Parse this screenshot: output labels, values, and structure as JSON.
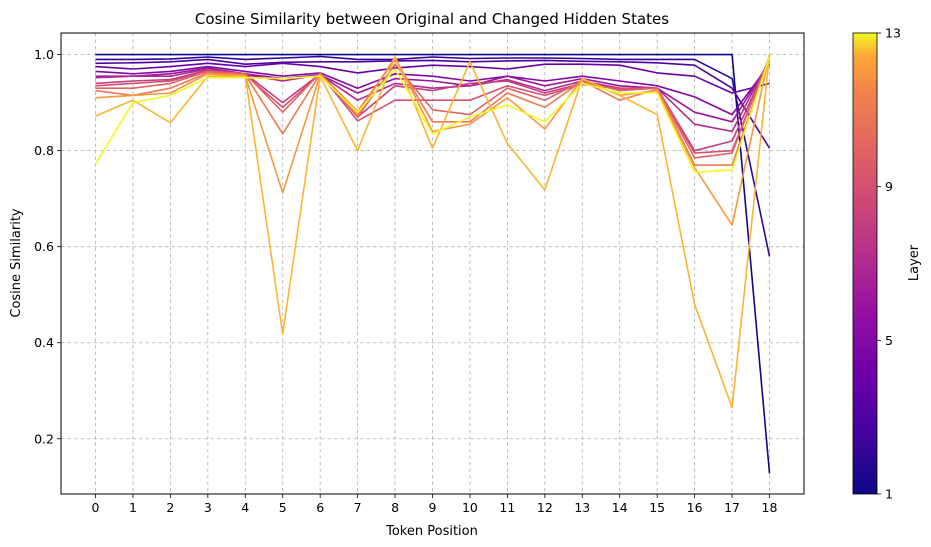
{
  "chart_data": {
    "type": "line",
    "title": "Cosine Similarity between Original and Changed Hidden States",
    "xlabel": "Token Position",
    "ylabel": "Cosine Similarity",
    "x": [
      0,
      1,
      2,
      3,
      4,
      5,
      6,
      7,
      8,
      9,
      10,
      11,
      12,
      13,
      14,
      15,
      16,
      17,
      18
    ],
    "ylim": [
      0.085,
      1.045
    ],
    "yticks": [
      0.2,
      0.4,
      0.6,
      0.8,
      1.0
    ],
    "grid": true,
    "grid_style": "dashed",
    "colormap": "plasma",
    "colorbar": {
      "label": "Layer",
      "min": 1,
      "max": 13,
      "ticks": [
        1,
        5,
        9,
        13
      ]
    },
    "series": [
      {
        "layer": 1,
        "values": [
          1.0,
          1.0,
          1.0,
          1.0,
          1.0,
          1.0,
          1.0,
          1.0,
          1.0,
          1.0,
          1.0,
          1.0,
          1.0,
          1.0,
          1.0,
          1.0,
          1.0,
          1.0,
          0.128
        ]
      },
      {
        "layer": 2,
        "values": [
          0.99,
          0.99,
          0.991,
          0.995,
          0.99,
          0.993,
          0.996,
          0.99,
          0.99,
          0.995,
          0.992,
          0.993,
          0.993,
          0.992,
          0.99,
          0.99,
          0.99,
          0.95,
          0.58
        ]
      },
      {
        "layer": 3,
        "values": [
          0.982,
          0.983,
          0.985,
          0.99,
          0.98,
          0.984,
          0.985,
          0.985,
          0.987,
          0.988,
          0.985,
          0.987,
          0.988,
          0.986,
          0.985,
          0.983,
          0.978,
          0.93,
          0.805
        ]
      },
      {
        "layer": 4,
        "values": [
          0.975,
          0.97,
          0.975,
          0.982,
          0.975,
          0.982,
          0.975,
          0.962,
          0.972,
          0.978,
          0.975,
          0.97,
          0.98,
          0.98,
          0.978,
          0.962,
          0.955,
          0.92,
          0.94
        ]
      },
      {
        "layer": 5,
        "values": [
          0.965,
          0.96,
          0.965,
          0.975,
          0.965,
          0.955,
          0.962,
          0.93,
          0.96,
          0.955,
          0.945,
          0.955,
          0.945,
          0.955,
          0.945,
          0.935,
          0.912,
          0.875,
          0.98
        ]
      },
      {
        "layer": 6,
        "values": [
          0.955,
          0.955,
          0.96,
          0.972,
          0.96,
          0.95,
          0.958,
          0.92,
          0.95,
          0.945,
          0.935,
          0.955,
          0.935,
          0.95,
          0.935,
          0.93,
          0.88,
          0.86,
          0.985
        ]
      },
      {
        "layer": 7,
        "values": [
          0.952,
          0.955,
          0.955,
          0.97,
          0.958,
          0.945,
          0.958,
          0.905,
          0.94,
          0.93,
          0.935,
          0.948,
          0.925,
          0.945,
          0.93,
          0.93,
          0.855,
          0.84,
          0.99
        ]
      },
      {
        "layer": 8,
        "values": [
          0.94,
          0.945,
          0.948,
          0.968,
          0.96,
          0.9,
          0.96,
          0.87,
          0.935,
          0.925,
          0.94,
          0.945,
          0.92,
          0.94,
          0.928,
          0.93,
          0.8,
          0.82,
          0.99
        ]
      },
      {
        "layer": 9,
        "values": [
          0.935,
          0.94,
          0.945,
          0.965,
          0.958,
          0.89,
          0.96,
          0.862,
          0.905,
          0.905,
          0.905,
          0.935,
          0.915,
          0.938,
          0.93,
          0.93,
          0.795,
          0.8,
          0.995
        ]
      },
      {
        "layer": 10,
        "values": [
          0.93,
          0.93,
          0.94,
          0.965,
          0.96,
          0.88,
          0.962,
          0.87,
          0.98,
          0.885,
          0.875,
          0.93,
          0.905,
          0.945,
          0.925,
          0.93,
          0.785,
          0.795,
          0.995
        ]
      },
      {
        "layer": 11,
        "values": [
          0.925,
          0.915,
          0.93,
          0.962,
          0.958,
          0.835,
          0.96,
          0.882,
          0.99,
          0.86,
          0.86,
          0.92,
          0.89,
          0.945,
          0.905,
          0.928,
          0.77,
          0.77,
          0.995
        ]
      },
      {
        "layer": 12,
        "values": [
          0.91,
          0.915,
          0.92,
          0.96,
          0.955,
          0.712,
          0.958,
          0.875,
          0.995,
          0.84,
          0.855,
          0.91,
          0.845,
          0.95,
          0.915,
          0.925,
          0.765,
          0.645,
          1.0
        ]
      },
      {
        "layer": 12.5,
        "values": [
          0.872,
          0.905,
          0.858,
          0.955,
          0.955,
          0.418,
          0.955,
          0.8,
          0.995,
          0.805,
          0.985,
          0.815,
          0.718,
          0.95,
          0.915,
          0.875,
          0.48,
          0.265,
          1.0
        ]
      },
      {
        "layer": 13,
        "values": [
          0.772,
          0.9,
          0.915,
          0.952,
          0.952,
          0.95,
          0.955,
          0.88,
          0.97,
          0.835,
          0.87,
          0.895,
          0.86,
          0.94,
          0.92,
          0.92,
          0.755,
          0.76,
          0.995
        ]
      }
    ]
  }
}
